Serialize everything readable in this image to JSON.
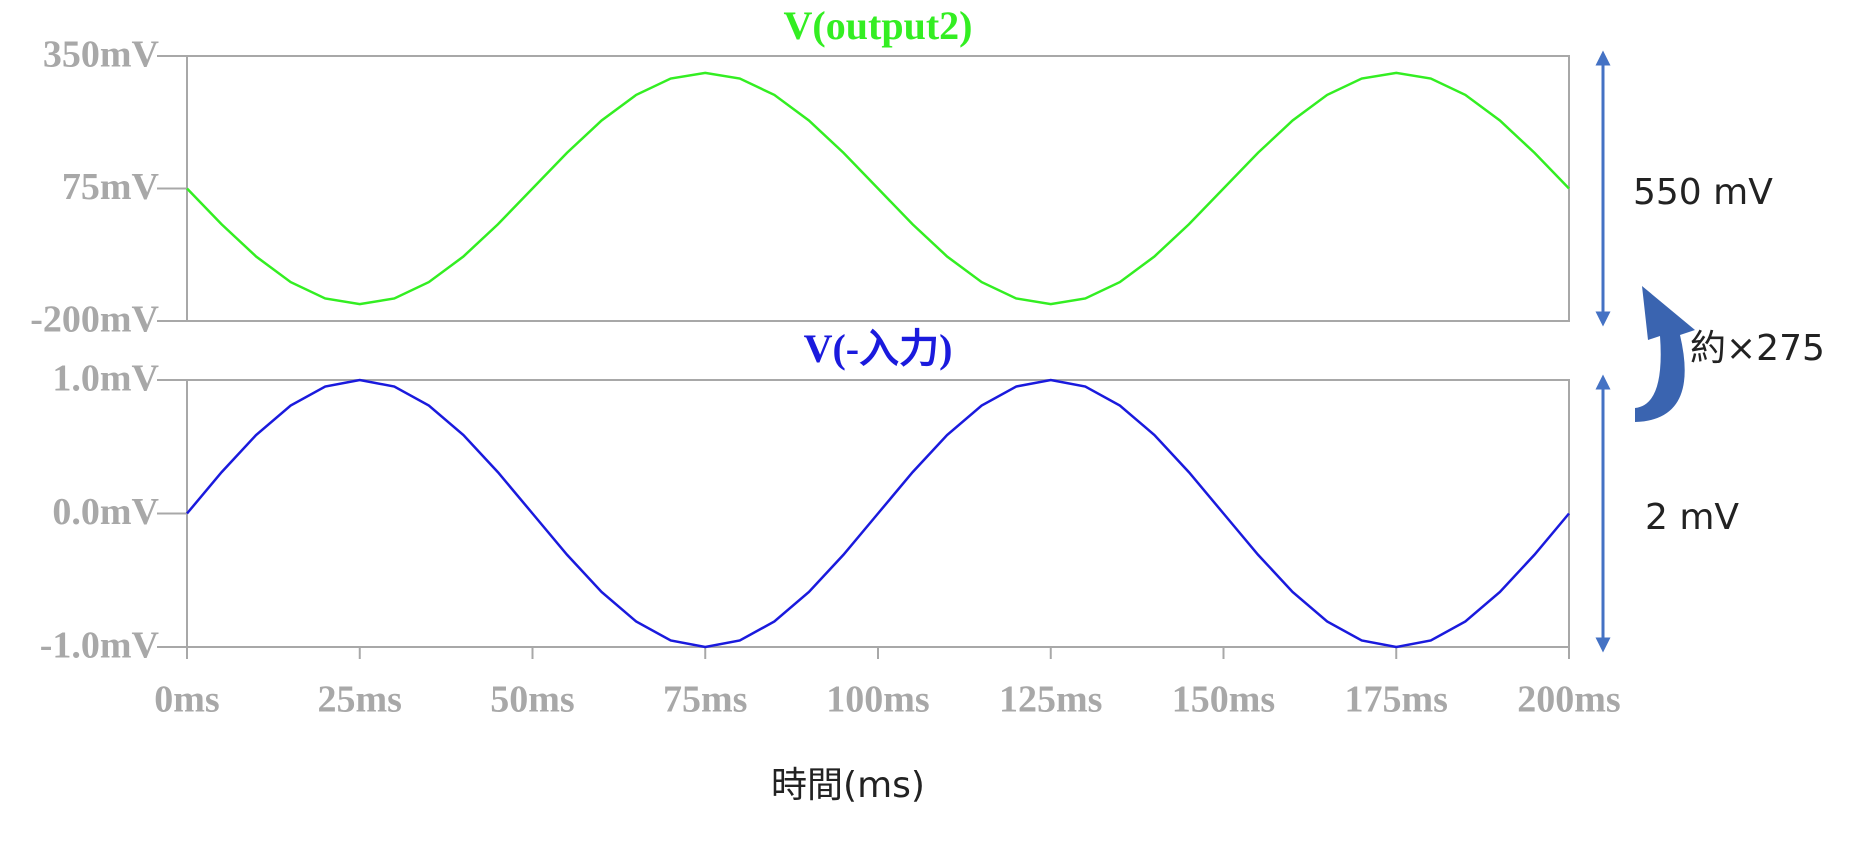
{
  "chart_data": [
    {
      "type": "line",
      "title": "V(output2)",
      "color": "#33ee22",
      "x": [
        0,
        5,
        10,
        15,
        20,
        25,
        30,
        35,
        40,
        45,
        50,
        55,
        60,
        65,
        70,
        75,
        80,
        85,
        90,
        95,
        100,
        105,
        110,
        115,
        120,
        125,
        130,
        135,
        140,
        145,
        150,
        155,
        160,
        165,
        170,
        175,
        180,
        185,
        190,
        195,
        200
      ],
      "values": [
        75,
        0.8,
        -66.1,
        -119.2,
        -153.2,
        -165,
        -153.2,
        -119.2,
        -66.1,
        0.8,
        75,
        149.2,
        216.1,
        269.2,
        303.2,
        315,
        303.2,
        269.2,
        216.1,
        149.2,
        75,
        0.8,
        -66.1,
        -119.2,
        -153.2,
        -165,
        -153.2,
        -119.2,
        -66.1,
        0.8,
        75,
        149.2,
        216.1,
        269.2,
        303.2,
        315,
        303.2,
        269.2,
        216.1,
        149.2,
        75
      ],
      "xlim": [
        0,
        200
      ],
      "ylim": [
        -200,
        350
      ],
      "yticks": [
        {
          "value": 350,
          "label": "350mV"
        },
        {
          "value": 75,
          "label": "75mV"
        },
        {
          "value": -200,
          "label": "-200mV"
        }
      ]
    },
    {
      "type": "line",
      "title": "V(-入力)",
      "color": "#1a1add",
      "x": [
        0,
        5,
        10,
        15,
        20,
        25,
        30,
        35,
        40,
        45,
        50,
        55,
        60,
        65,
        70,
        75,
        80,
        85,
        90,
        95,
        100,
        105,
        110,
        115,
        120,
        125,
        130,
        135,
        140,
        145,
        150,
        155,
        160,
        165,
        170,
        175,
        180,
        185,
        190,
        195,
        200
      ],
      "values": [
        0,
        0.309,
        0.588,
        0.809,
        0.951,
        1,
        0.951,
        0.809,
        0.588,
        0.309,
        0,
        -0.309,
        -0.588,
        -0.809,
        -0.951,
        -1,
        -0.951,
        -0.809,
        -0.588,
        -0.309,
        0,
        0.309,
        0.588,
        0.809,
        0.951,
        1,
        0.951,
        0.809,
        0.588,
        0.309,
        0,
        -0.309,
        -0.588,
        -0.809,
        -0.951,
        -1,
        -0.951,
        -0.809,
        -0.588,
        -0.309,
        0
      ],
      "xlim": [
        0,
        200
      ],
      "ylim": [
        -1,
        1
      ],
      "yticks": [
        {
          "value": 1,
          "label": "1.0mV"
        },
        {
          "value": 0,
          "label": "0.0mV"
        },
        {
          "value": -1,
          "label": "-1.0mV"
        }
      ],
      "xticks": [
        {
          "value": 0,
          "label": "0ms"
        },
        {
          "value": 25,
          "label": "25ms"
        },
        {
          "value": 50,
          "label": "50ms"
        },
        {
          "value": 75,
          "label": "75ms"
        },
        {
          "value": 100,
          "label": "100ms"
        },
        {
          "value": 125,
          "label": "125ms"
        },
        {
          "value": 150,
          "label": "150ms"
        },
        {
          "value": 175,
          "label": "175ms"
        },
        {
          "value": 200,
          "label": "200ms"
        }
      ],
      "xlabel": "時間(ms)"
    }
  ],
  "annotations": [
    "550 mV",
    "約×275",
    "2 mV"
  ]
}
